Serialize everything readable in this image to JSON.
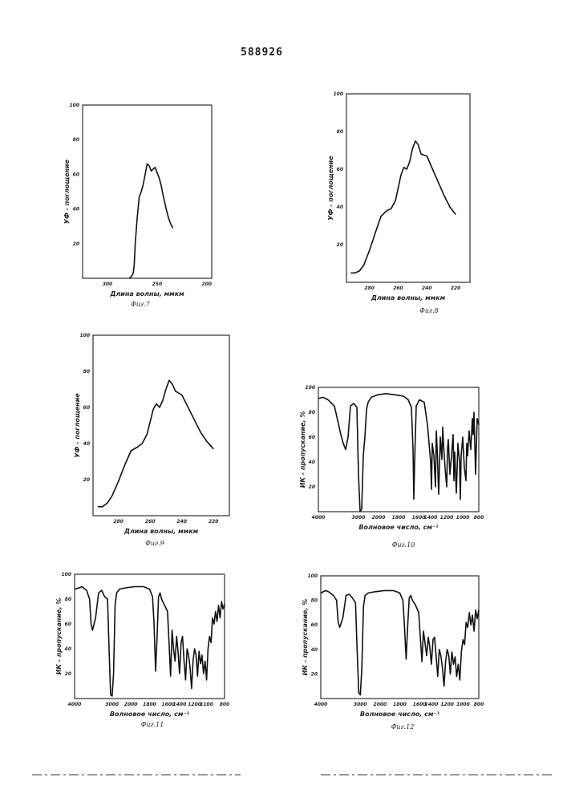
{
  "document": {
    "patent_number": "588926"
  },
  "chart_data": [
    {
      "id": "fig7",
      "type": "line",
      "caption": "Фиг.7",
      "xlabel": "Длина волны, ммкм",
      "ylabel": "УФ - поглощение",
      "x_ticks": [
        "300",
        "250",
        "200"
      ],
      "y_ticks": [
        "20",
        "40",
        "60",
        "80",
        "100"
      ],
      "xlim": [
        325,
        195
      ],
      "ylim": [
        0,
        100
      ],
      "x_tick_values": [
        300,
        250,
        200
      ],
      "y_tick_values": [
        20,
        40,
        60,
        80,
        100
      ],
      "x": [
        278,
        276,
        274,
        273,
        272,
        270,
        268,
        266,
        264,
        262,
        260,
        258,
        256,
        254,
        252,
        250,
        248,
        246,
        244,
        242,
        240,
        238,
        236,
        234
      ],
      "y": [
        0,
        1,
        3,
        8,
        20,
        35,
        47,
        50,
        54,
        60,
        66,
        65,
        62,
        63,
        64,
        61,
        58,
        54,
        48,
        43,
        38,
        34,
        31,
        29
      ]
    },
    {
      "id": "fig8",
      "type": "line",
      "caption": "Фиг.8",
      "xlabel": "Длина волны, ммкм",
      "ylabel": "УФ - поглощение",
      "x_ticks": [
        "280",
        "260",
        "240",
        "220"
      ],
      "y_ticks": [
        "20",
        "40",
        "60",
        "80",
        "100"
      ],
      "xlim": [
        296,
        210
      ],
      "ylim": [
        0,
        100
      ],
      "x_tick_values": [
        280,
        260,
        240,
        220
      ],
      "y_tick_values": [
        20,
        40,
        60,
        80,
        100
      ],
      "x": [
        293,
        290,
        287,
        284,
        280,
        276,
        272,
        268,
        265,
        262,
        260,
        258,
        256,
        254,
        252,
        250,
        248,
        246,
        244,
        240,
        236,
        232,
        228,
        224,
        220
      ],
      "y": [
        5,
        5,
        6,
        9,
        17,
        26,
        35,
        38,
        39,
        43,
        50,
        57,
        61,
        60,
        64,
        71,
        75,
        73,
        68,
        67,
        60,
        53,
        46,
        40,
        36
      ]
    },
    {
      "id": "fig9",
      "type": "line",
      "caption": "Фиг.9",
      "xlabel": "Длина волны, ммкм",
      "ylabel": "УФ - поглощение",
      "x_ticks": [
        "280",
        "260",
        "240",
        "220"
      ],
      "y_ticks": [
        "20",
        "40",
        "60",
        "80",
        "100"
      ],
      "xlim": [
        296,
        210
      ],
      "ylim": [
        0,
        100
      ],
      "x_tick_values": [
        280,
        260,
        240,
        220
      ],
      "y_tick_values": [
        20,
        40,
        60,
        80,
        100
      ],
      "x": [
        293,
        290,
        287,
        284,
        280,
        276,
        272,
        268,
        265,
        262,
        260,
        258,
        256,
        254,
        252,
        250,
        248,
        246,
        244,
        240,
        236,
        232,
        228,
        224,
        220
      ],
      "y": [
        5,
        5,
        7,
        11,
        19,
        28,
        36,
        38,
        40,
        45,
        52,
        59,
        62,
        60,
        64,
        70,
        75,
        73,
        69,
        67,
        60,
        53,
        46,
        41,
        37
      ]
    },
    {
      "id": "fig10",
      "type": "line",
      "caption": "Фиг.10",
      "xlabel": "Волновое число, см⁻¹",
      "ylabel": "ИК - пропускание, %",
      "x_ticks": [
        "4000",
        "3000",
        "2000",
        "1800",
        "1600",
        "1400",
        "1200",
        "1000",
        "800"
      ],
      "y_ticks": [
        "20",
        "40",
        "60",
        "80",
        "100"
      ],
      "xlim": [
        0,
        100
      ],
      "ylim": [
        0,
        100
      ],
      "x_tick_values": [
        0,
        25,
        37.5,
        50,
        62.5,
        70,
        80,
        90,
        100
      ],
      "y_tick_values": [
        20,
        40,
        60,
        80,
        100
      ],
      "x": [
        0,
        3,
        6,
        10,
        14,
        15.5,
        17,
        18.5,
        20,
        22,
        24,
        25,
        26,
        27,
        28,
        29,
        30,
        31,
        33,
        37,
        42,
        48,
        53,
        56,
        58,
        59,
        59.5,
        60,
        61,
        63,
        66,
        68,
        70,
        70.5,
        71,
        72,
        73,
        73.5,
        74,
        75,
        76,
        77,
        77.5,
        78,
        79,
        80,
        80.5,
        81,
        82,
        83,
        84,
        84.5,
        85,
        86,
        87,
        88,
        88.5,
        89,
        90,
        91,
        92,
        92.5,
        93,
        94,
        95,
        96,
        96.5,
        97,
        98,
        99,
        100
      ],
      "y": [
        91,
        92,
        90,
        85,
        62,
        55,
        50,
        60,
        85,
        87,
        84,
        30,
        0,
        2,
        45,
        60,
        82,
        88,
        92,
        94,
        95,
        94,
        93,
        90,
        84,
        50,
        10,
        40,
        85,
        90,
        88,
        70,
        40,
        18,
        55,
        45,
        20,
        65,
        52,
        14,
        60,
        42,
        68,
        55,
        35,
        20,
        50,
        58,
        30,
        45,
        62,
        25,
        48,
        15,
        55,
        40,
        10,
        45,
        60,
        35,
        25,
        55,
        45,
        65,
        50,
        75,
        62,
        80,
        30,
        75,
        70
      ]
    },
    {
      "id": "fig11",
      "type": "line",
      "caption": "Фиг.11",
      "xlabel": "Волновое число, см⁻¹",
      "ylabel": "ИК - пропускание, %",
      "x_ticks": [
        "4000",
        "3000",
        "2000",
        "1800",
        "1600",
        "1400",
        "1200",
        "1100",
        "800"
      ],
      "y_ticks": [
        "20",
        "40",
        "60",
        "80",
        "100"
      ],
      "xlim": [
        0,
        100
      ],
      "ylim": [
        0,
        100
      ],
      "x_tick_values": [
        0,
        25,
        37.5,
        50,
        62.5,
        70,
        80,
        88,
        100
      ],
      "y_tick_values": [
        20,
        40,
        60,
        80,
        100
      ],
      "x": [
        0,
        3,
        5,
        8,
        10,
        11,
        12,
        14,
        16,
        18,
        20,
        22,
        23,
        24,
        25,
        26,
        27,
        28,
        30,
        34,
        40,
        46,
        50,
        52,
        53,
        54,
        55,
        56,
        57,
        58,
        60,
        62,
        63,
        64,
        65,
        66,
        67,
        68,
        69,
        70,
        71,
        72,
        73,
        74,
        75,
        76,
        77,
        78,
        79,
        80,
        81,
        82,
        83,
        84,
        85,
        86,
        87,
        88,
        89,
        90,
        91,
        92,
        93,
        94,
        95,
        96,
        97,
        98,
        99,
        100
      ],
      "y": [
        88,
        89,
        90,
        87,
        80,
        60,
        55,
        65,
        85,
        87,
        82,
        80,
        40,
        3,
        2,
        20,
        75,
        85,
        88,
        89,
        90,
        90,
        88,
        82,
        60,
        22,
        50,
        82,
        85,
        80,
        75,
        70,
        45,
        18,
        55,
        40,
        30,
        50,
        38,
        20,
        45,
        50,
        30,
        15,
        40,
        35,
        25,
        8,
        30,
        40,
        35,
        18,
        38,
        28,
        35,
        20,
        30,
        15,
        40,
        50,
        45,
        65,
        60,
        70,
        62,
        75,
        65,
        78,
        72,
        76
      ]
    },
    {
      "id": "fig12",
      "type": "line",
      "caption": "Фиг.12",
      "xlabel": "Волновое число, см⁻¹",
      "ylabel": "ИК - пропускание, %",
      "x_ticks": [
        "4000",
        "3000",
        "2000",
        "1800",
        "1600",
        "1400",
        "1200",
        "1000",
        "800"
      ],
      "y_ticks": [
        "20",
        "40",
        "60",
        "80",
        "100"
      ],
      "xlim": [
        0,
        100
      ],
      "ylim": [
        0,
        100
      ],
      "x_tick_values": [
        0,
        25,
        37.5,
        50,
        62.5,
        70,
        80,
        90,
        100
      ],
      "y_tick_values": [
        20,
        40,
        60,
        80,
        100
      ],
      "x": [
        0,
        3,
        5,
        8,
        10,
        11,
        12,
        14,
        16,
        18,
        20,
        22,
        23,
        24,
        25,
        26,
        27,
        28,
        30,
        34,
        40,
        46,
        50,
        52,
        53,
        54,
        55,
        56,
        57,
        58,
        60,
        62,
        63,
        64,
        65,
        66,
        67,
        68,
        69,
        70,
        71,
        72,
        73,
        74,
        75,
        76,
        77,
        78,
        79,
        80,
        81,
        82,
        83,
        84,
        85,
        86,
        87,
        88,
        89,
        90,
        91,
        92,
        93,
        94,
        95,
        96,
        97,
        98,
        99,
        100
      ],
      "y": [
        86,
        88,
        87,
        84,
        80,
        62,
        58,
        66,
        84,
        85,
        82,
        78,
        40,
        5,
        3,
        25,
        75,
        84,
        86,
        87,
        88,
        88,
        86,
        80,
        58,
        32,
        60,
        82,
        84,
        80,
        76,
        70,
        50,
        30,
        55,
        45,
        35,
        50,
        42,
        28,
        48,
        50,
        35,
        18,
        40,
        35,
        25,
        10,
        30,
        40,
        35,
        20,
        38,
        28,
        34,
        18,
        28,
        15,
        38,
        48,
        44,
        62,
        58,
        70,
        60,
        68,
        55,
        72,
        65,
        72
      ]
    }
  ]
}
